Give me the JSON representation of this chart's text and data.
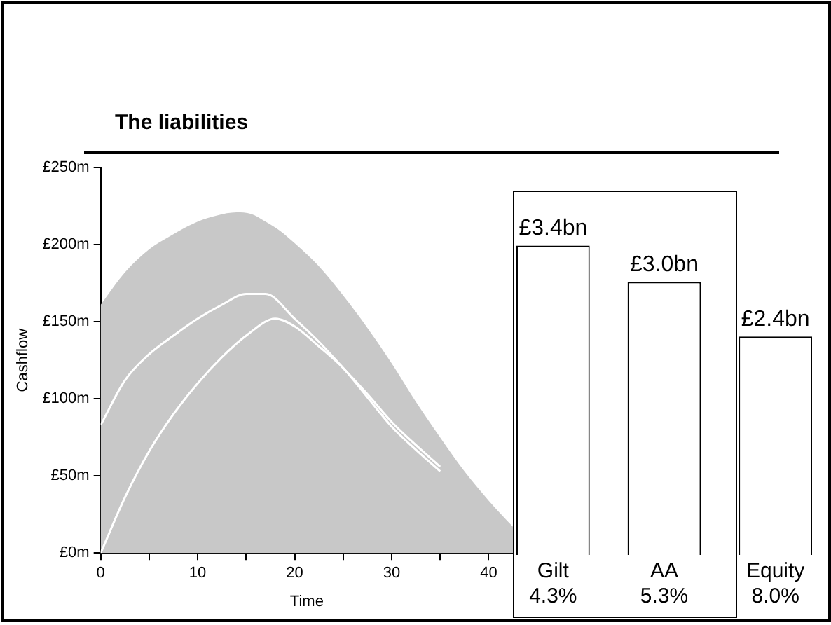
{
  "chart_data": [
    {
      "type": "area",
      "title": "The liabilities",
      "xlabel": "Time",
      "ylabel": "Cashflow",
      "xlim": [
        0,
        42.5
      ],
      "xticks": [
        0,
        {
          "value": 5,
          "label": null
        },
        10,
        {
          "value": 15,
          "label": null
        },
        20,
        {
          "value": 25,
          "label": null
        },
        30,
        {
          "value": 35,
          "label": null
        },
        40
      ],
      "ylim": [
        0,
        250
      ],
      "yticks": [
        {
          "value": 0,
          "label": "£0m"
        },
        {
          "value": 50,
          "label": "£50m"
        },
        {
          "value": 100,
          "label": "£100m"
        },
        {
          "value": 150,
          "label": "£150m"
        },
        {
          "value": 200,
          "label": "£200m"
        },
        {
          "value": 250,
          "label": "£250m"
        }
      ],
      "grid": false,
      "legend": false,
      "marker": "none",
      "series": [
        {
          "type": "area",
          "color": "#c8c8c8",
          "x": [
            0,
            2.5,
            5,
            7,
            10,
            12,
            14,
            15.5,
            17,
            18.5,
            20,
            22.5,
            25,
            27.5,
            30,
            32.5,
            35,
            37.5,
            40,
            42.5
          ],
          "values": [
            161,
            182,
            197,
            205,
            215,
            219,
            221,
            220,
            215,
            209,
            201,
            186,
            167,
            146,
            123,
            98,
            75,
            53,
            34,
            17
          ]
        },
        {
          "type": "line",
          "color": "#ffffff",
          "x": [
            0,
            2.5,
            5,
            7.5,
            10,
            12.5,
            15,
            17,
            20,
            22.5,
            25,
            27.5,
            30,
            32.5,
            35
          ],
          "values": [
            83,
            112,
            129,
            141,
            152,
            161,
            168,
            168,
            152,
            137,
            120,
            103,
            85,
            70,
            56
          ]
        },
        {
          "type": "line",
          "color": "#ffffff",
          "x": [
            0,
            2.5,
            5,
            7.5,
            10,
            12.5,
            15,
            18,
            20,
            22.5,
            25,
            27.5,
            30,
            32.5,
            35
          ],
          "values": [
            0,
            36,
            66,
            90,
            110,
            127,
            141,
            152,
            147,
            134,
            120,
            101,
            82,
            67,
            53
          ]
        }
      ]
    },
    {
      "type": "bar",
      "categories": [
        "Gilt\n4.3%",
        "AA\n5.3%",
        "Equity\n8.0%"
      ],
      "values": [
        3.4,
        3.0,
        2.4
      ],
      "color": "#ffffff",
      "value_labels": [
        "£3.4bn",
        "£3.0bn",
        "£2.4bn"
      ],
      "tick_labels": "x",
      "grid": false,
      "legend": false
    }
  ]
}
